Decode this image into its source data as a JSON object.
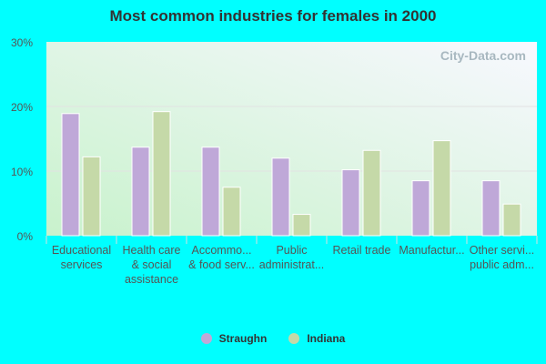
{
  "chart_data": {
    "type": "bar",
    "title": "Most common industries for females in 2000",
    "categories": [
      [
        "Educational",
        "services"
      ],
      [
        "Health care",
        "& social",
        "assistance"
      ],
      [
        "Accommo...",
        "& food serv..."
      ],
      [
        "Public",
        "administrat..."
      ],
      [
        "Retail trade"
      ],
      [
        "Manufactur..."
      ],
      [
        "Other servi...",
        "public adm..."
      ]
    ],
    "series": [
      {
        "name": "Straughn",
        "color": "#bfa8d8",
        "values": [
          18.9,
          13.7,
          13.7,
          12.0,
          10.2,
          8.5,
          8.5
        ]
      },
      {
        "name": "Indiana",
        "color": "#c5d9a8",
        "values": [
          12.2,
          19.2,
          7.5,
          3.3,
          13.2,
          14.7,
          4.9
        ]
      }
    ],
    "yticks": [
      "0%",
      "10%",
      "20%",
      "30%"
    ],
    "ylim": [
      0,
      30
    ],
    "grid": true,
    "legend": "bottom",
    "watermark": "City-Data.com"
  }
}
